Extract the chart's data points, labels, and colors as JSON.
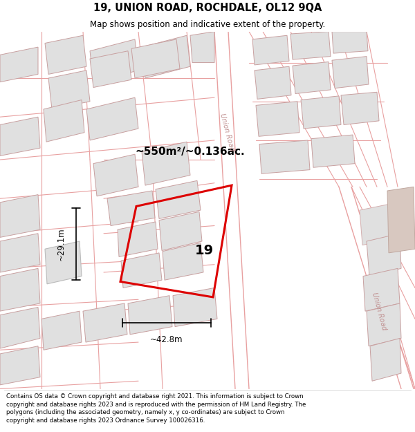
{
  "title_line1": "19, UNION ROAD, ROCHDALE, OL12 9QA",
  "title_line2": "Map shows position and indicative extent of the property.",
  "footer_text": "Contains OS data © Crown copyright and database right 2021. This information is subject to Crown copyright and database rights 2023 and is reproduced with the permission of HM Land Registry. The polygons (including the associated geometry, namely x, y co-ordinates) are subject to Crown copyright and database rights 2023 Ordnance Survey 100026316.",
  "area_label": "~550m²/~0.136ac.",
  "width_label": "~42.8m",
  "height_label": "~29.1m",
  "property_number": "19",
  "road_label_1": "Union Road",
  "road_label_2": "Union Road",
  "bg_color": "#ffffff",
  "map_bg": "#ffffff",
  "property_color": "#dd0000",
  "building_fill": "#e0e0e0",
  "building_edge": "#c8a0a0",
  "road_color": "#e8a0a0",
  "title_fontsize": 10.5,
  "subtitle_fontsize": 8.5,
  "footer_fontsize": 6.2
}
